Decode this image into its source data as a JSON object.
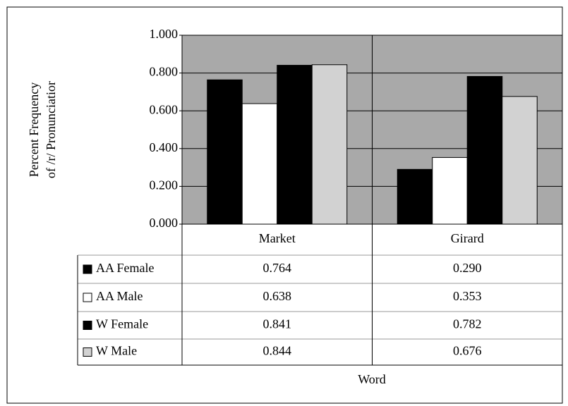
{
  "chart_data": {
    "type": "bar",
    "ylabel": [
      "Percent Frequency",
      "of /r/ Pronunciatior"
    ],
    "xlabel": "Word",
    "categories": [
      "Market",
      "Girard"
    ],
    "series": [
      {
        "name": "AA Female",
        "color": "#000000",
        "values": [
          0.764,
          0.29
        ],
        "value_labels": [
          "0.764",
          "0.290"
        ]
      },
      {
        "name": "AA Male",
        "color": "#ffffff",
        "values": [
          0.638,
          0.353
        ],
        "value_labels": [
          "0.638",
          "0.353"
        ]
      },
      {
        "name": "W Female",
        "color": "#000000",
        "values": [
          0.841,
          0.782
        ],
        "value_labels": [
          "0.841",
          "0.782"
        ]
      },
      {
        "name": "W Male",
        "color": "#d2d2d2",
        "values": [
          0.844,
          0.676
        ],
        "value_labels": [
          "0.844",
          "0.676"
        ]
      }
    ],
    "ylim": [
      0,
      1
    ],
    "yticks": [
      {
        "value": 0,
        "label": "0.000"
      },
      {
        "value": 0.2,
        "label": "0.200"
      },
      {
        "value": 0.4,
        "label": "0.400"
      },
      {
        "value": 0.6,
        "label": "0.600"
      },
      {
        "value": 0.8,
        "label": "0.800"
      },
      {
        "value": 1,
        "label": "1.000"
      }
    ],
    "grid": true,
    "plot_background": "#a9a9a9",
    "data_table": true
  }
}
